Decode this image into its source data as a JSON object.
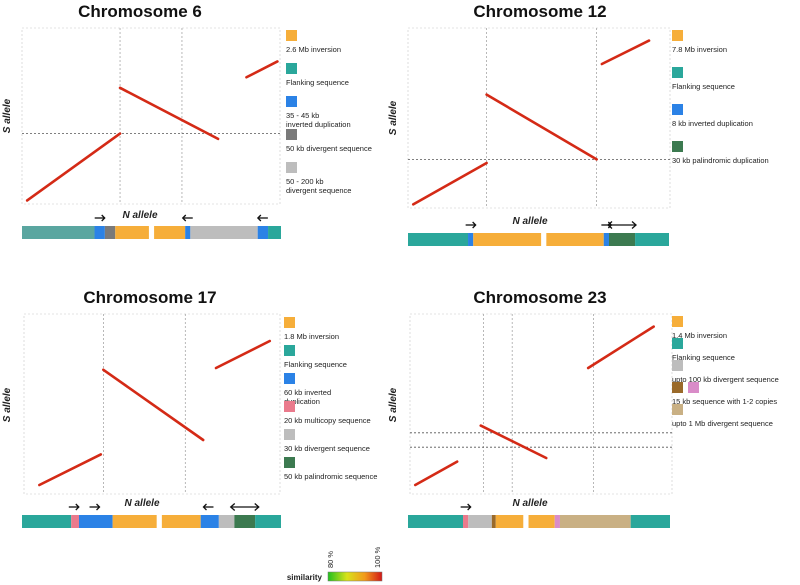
{
  "colorbar": {
    "label": "similarity",
    "min_label": "80 %",
    "max_label": "100 %",
    "colors": [
      "#22c020",
      "#d8e21a",
      "#f29a1a",
      "#d21818"
    ]
  },
  "chart_data": [
    {
      "type": "dotplot",
      "title": "Chromosome 6",
      "xlabel": "N allele",
      "ylabel": "S allele",
      "diagonals": [
        {
          "x0": 0.02,
          "y0": 0.02,
          "x1": 0.38,
          "y1": 0.4,
          "color": "#d42a16"
        },
        {
          "x0": 0.38,
          "y0": 0.66,
          "x1": 0.76,
          "y1": 0.37,
          "color": "#d42a16"
        },
        {
          "x0": 0.87,
          "y0": 0.72,
          "x1": 0.99,
          "y1": 0.81,
          "color": "#d42a16"
        }
      ],
      "vlines": [
        0.38,
        0.62
      ],
      "hlines": [
        0.4
      ],
      "legend": [
        {
          "label": "2.6 Mb inversion",
          "color": "#f6ae3a"
        },
        {
          "label": "Flanking sequence",
          "color": "#2aa79b"
        },
        {
          "label": "35 - 45 kb\ninverted duplication",
          "color": "#2b82e6"
        },
        {
          "label": "50 kb divergent sequence",
          "color": "#7a7a7a"
        },
        {
          "label": "50 - 200 kb\ndivergent sequence",
          "color": "#bdbdbd"
        }
      ],
      "bar": [
        {
          "start": 0.0,
          "end": 0.28,
          "color": "#5aa6a0"
        },
        {
          "start": 0.28,
          "end": 0.32,
          "color": "#2b82e6"
        },
        {
          "start": 0.32,
          "end": 0.36,
          "color": "#7a7a7a"
        },
        {
          "start": 0.36,
          "end": 0.49,
          "color": "#f6ae3a"
        },
        {
          "start": 0.51,
          "end": 0.63,
          "color": "#f6ae3a"
        },
        {
          "start": 0.63,
          "end": 0.65,
          "color": "#2b82e6"
        },
        {
          "start": 0.65,
          "end": 0.91,
          "color": "#bdbdbd"
        },
        {
          "start": 0.91,
          "end": 0.95,
          "color": "#2b82e6"
        },
        {
          "start": 0.95,
          "end": 1.0,
          "color": "#2aa79b"
        }
      ],
      "arrows": [
        {
          "x": 0.3,
          "dir": "right"
        },
        {
          "x": 0.64,
          "dir": "left"
        },
        {
          "x": 0.93,
          "dir": "left"
        }
      ]
    },
    {
      "type": "dotplot",
      "title": "Chromosome 12",
      "xlabel": "N allele",
      "ylabel": "S allele",
      "diagonals": [
        {
          "x0": 0.02,
          "y0": 0.02,
          "x1": 0.3,
          "y1": 0.25,
          "color": "#d42a16"
        },
        {
          "x0": 0.3,
          "y0": 0.63,
          "x1": 0.72,
          "y1": 0.27,
          "color": "#d42a16"
        },
        {
          "x0": 0.74,
          "y0": 0.8,
          "x1": 0.92,
          "y1": 0.93,
          "color": "#d42a16"
        }
      ],
      "vlines": [
        0.3,
        0.72
      ],
      "hlines": [
        0.27
      ],
      "legend": [
        {
          "label": "7.8 Mb inversion",
          "color": "#f6ae3a"
        },
        {
          "label": "Flanking sequence",
          "color": "#2aa79b"
        },
        {
          "label": "8 kb inverted duplication",
          "color": "#2b82e6"
        },
        {
          "label": "30 kb palindromic duplication",
          "color": "#3c7a50"
        }
      ],
      "bar": [
        {
          "start": 0.0,
          "end": 0.23,
          "color": "#2aa79b"
        },
        {
          "start": 0.23,
          "end": 0.25,
          "color": "#2b82e6"
        },
        {
          "start": 0.25,
          "end": 0.51,
          "color": "#f6ae3a"
        },
        {
          "start": 0.53,
          "end": 0.75,
          "color": "#f6ae3a"
        },
        {
          "start": 0.75,
          "end": 0.77,
          "color": "#2b82e6"
        },
        {
          "start": 0.77,
          "end": 0.87,
          "color": "#3c7a50"
        },
        {
          "start": 0.87,
          "end": 1.0,
          "color": "#2aa79b"
        }
      ],
      "arrows": [
        {
          "x": 0.24,
          "dir": "right"
        },
        {
          "x": 0.76,
          "dir": "right"
        },
        {
          "x": 0.82,
          "dir": "both"
        }
      ]
    },
    {
      "type": "dotplot",
      "title": "Chromosome 17",
      "xlabel": "N allele",
      "ylabel": "S allele",
      "diagonals": [
        {
          "x0": 0.06,
          "y0": 0.05,
          "x1": 0.3,
          "y1": 0.22,
          "color": "#d42a16"
        },
        {
          "x0": 0.31,
          "y0": 0.69,
          "x1": 0.7,
          "y1": 0.3,
          "color": "#d42a16"
        },
        {
          "x0": 0.75,
          "y0": 0.7,
          "x1": 0.96,
          "y1": 0.85,
          "color": "#d42a16"
        }
      ],
      "vlines": [
        0.31,
        0.63
      ],
      "hlines": [],
      "legend": [
        {
          "label": "1.8 Mb inversion",
          "color": "#f6ae3a"
        },
        {
          "label": "Flanking sequence",
          "color": "#2aa79b"
        },
        {
          "label": "60 kb inverted\nduplication",
          "color": "#2b82e6"
        },
        {
          "label": "20 kb multicopy sequence",
          "color": "#ea7a8c"
        },
        {
          "label": "30 kb divergent sequence",
          "color": "#bdbdbd"
        },
        {
          "label": "50 kb palindromic sequence",
          "color": "#3c7a50"
        }
      ],
      "bar": [
        {
          "start": 0.0,
          "end": 0.19,
          "color": "#2aa79b"
        },
        {
          "start": 0.19,
          "end": 0.22,
          "color": "#ea7a8c"
        },
        {
          "start": 0.22,
          "end": 0.35,
          "color": "#2b82e6"
        },
        {
          "start": 0.35,
          "end": 0.52,
          "color": "#f6ae3a"
        },
        {
          "start": 0.54,
          "end": 0.69,
          "color": "#f6ae3a"
        },
        {
          "start": 0.69,
          "end": 0.76,
          "color": "#2b82e6"
        },
        {
          "start": 0.76,
          "end": 0.82,
          "color": "#bdbdbd"
        },
        {
          "start": 0.82,
          "end": 0.9,
          "color": "#3c7a50"
        },
        {
          "start": 0.9,
          "end": 1.0,
          "color": "#2aa79b"
        }
      ],
      "arrows": [
        {
          "x": 0.2,
          "dir": "right"
        },
        {
          "x": 0.28,
          "dir": "right"
        },
        {
          "x": 0.72,
          "dir": "left"
        },
        {
          "x": 0.86,
          "dir": "both"
        }
      ]
    },
    {
      "type": "dotplot",
      "title": "Chromosome 23",
      "xlabel": "N allele",
      "ylabel": "S allele",
      "diagonals": [
        {
          "x0": 0.02,
          "y0": 0.05,
          "x1": 0.18,
          "y1": 0.18,
          "color": "#d42a16"
        },
        {
          "x0": 0.27,
          "y0": 0.38,
          "x1": 0.52,
          "y1": 0.2,
          "color": "#d42a16"
        },
        {
          "x0": 0.68,
          "y0": 0.7,
          "x1": 0.93,
          "y1": 0.93,
          "color": "#d42a16"
        }
      ],
      "vlines": [
        0.28,
        0.39,
        0.7
      ],
      "hlines": [
        0.26,
        0.34
      ],
      "legend": [
        {
          "label": "1.4 Mb inversion",
          "color": "#f6ae3a"
        },
        {
          "label": "Flanking sequence",
          "color": "#2aa79b"
        },
        {
          "label": "upto 100 kb divergent sequence",
          "color": "#bdbdbd"
        },
        {
          "label": "15 kb sequence with 1-2 copies",
          "color": "#9a6a2a",
          "color2": "#d98cc8"
        },
        {
          "label": "upto 1 Mb divergent sequence",
          "color": "#c9b084"
        }
      ],
      "bar": [
        {
          "start": 0.0,
          "end": 0.21,
          "color": "#2aa79b"
        },
        {
          "start": 0.21,
          "end": 0.23,
          "color": "#ea7a8c"
        },
        {
          "start": 0.23,
          "end": 0.32,
          "color": "#bdbdbd"
        },
        {
          "start": 0.32,
          "end": 0.335,
          "color": "#9a6a2a"
        },
        {
          "start": 0.335,
          "end": 0.44,
          "color": "#f6ae3a"
        },
        {
          "start": 0.46,
          "end": 0.56,
          "color": "#f6ae3a"
        },
        {
          "start": 0.56,
          "end": 0.58,
          "color": "#d98cc8"
        },
        {
          "start": 0.58,
          "end": 0.85,
          "color": "#c9b084"
        },
        {
          "start": 0.85,
          "end": 1.0,
          "color": "#2aa79b"
        }
      ],
      "arrows": [
        {
          "x": 0.22,
          "dir": "right"
        }
      ]
    }
  ]
}
